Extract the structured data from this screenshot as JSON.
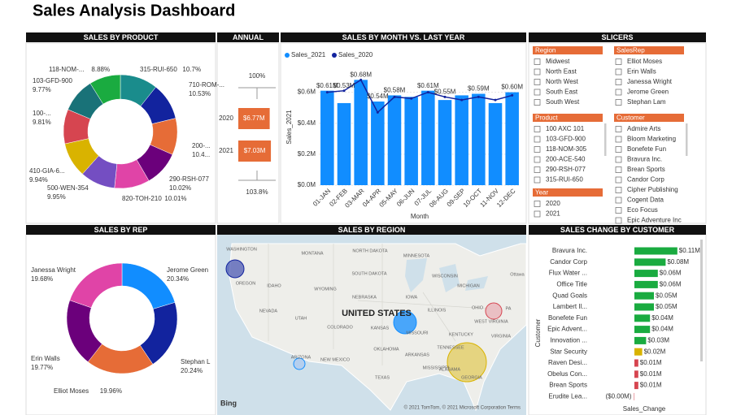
{
  "title": "Sales Analysis Dashboard",
  "chart_data": [
    {
      "type": "pie",
      "title": "SALES BY PRODUCT",
      "categories": [
        "315-RUI-650",
        "710-ROM-...",
        "200-...",
        "290-RSH-077",
        "820-TOH-210",
        "500-WEN-354",
        "410-GIA-6...",
        "100-...",
        "103-GFD-900",
        "118-NOM-..."
      ],
      "values": [
        10.7,
        10.53,
        10.4,
        10.02,
        10.01,
        9.95,
        9.94,
        9.81,
        9.77,
        8.88
      ],
      "value_labels": [
        "10.7%",
        "10.53%",
        "10.4...",
        "10.02%",
        "10.01%",
        "9.95%",
        "9.94%",
        "9.81%",
        "9.77%",
        "8.88%"
      ],
      "colors": [
        "#1a8c8c",
        "#12239e",
        "#e66c37",
        "#6b007b",
        "#e044a7",
        "#744ec2",
        "#d9b300",
        "#d64550",
        "#197278",
        "#1aab40"
      ]
    },
    {
      "type": "kpi",
      "title": "ANNUAL",
      "categories": [
        "2020",
        "2021"
      ],
      "values": [
        6.77,
        7.03
      ],
      "value_labels": [
        "$6.77M",
        "$7.03M"
      ],
      "annotations": [
        "100%",
        "103.8%"
      ],
      "color": "#e66c37"
    },
    {
      "type": "combo",
      "title": "SALES BY MONTH VS. LAST YEAR",
      "categories": [
        "01-JAN",
        "02-FEB",
        "03-MAR",
        "04-APR",
        "05-MAY",
        "06-JUN",
        "07-JUL",
        "08-AUG",
        "09-SEP",
        "10-OCT",
        "11-NOV",
        "12-DEC"
      ],
      "series": [
        {
          "name": "Sales_2021",
          "color": "#118dff",
          "values": [
            0.61,
            0.53,
            0.68,
            0.54,
            0.58,
            0.57,
            0.61,
            0.55,
            0.58,
            0.59,
            0.53,
            0.6
          ],
          "value_labels": [
            "$0.61M",
            "$0.53M",
            "$0.68M",
            "$0.54M",
            "$0.58M",
            null,
            "$0.61M",
            "$0.55M",
            null,
            "$0.59M",
            null,
            "$0.60M"
          ]
        },
        {
          "name": "Sales_2020",
          "color": "#12239e",
          "values": [
            0.6,
            0.61,
            0.68,
            0.47,
            0.57,
            0.56,
            0.6,
            0.57,
            0.55,
            0.57,
            0.55,
            0.58
          ]
        }
      ],
      "ylim": [
        0,
        0.75
      ],
      "yticks": [
        {
          "value": 0,
          "label": "$0.0M"
        },
        {
          "value": 0.2,
          "label": "$0.2M"
        },
        {
          "value": 0.4,
          "label": "$0.4M"
        },
        {
          "value": 0.6,
          "label": "$0.6M"
        }
      ],
      "ylabel": "Sales_2021",
      "xlabel": "Month",
      "grid": true
    },
    {
      "type": "pie",
      "title": "SALES BY REP",
      "categories": [
        "Jerome Green",
        "Stephan L",
        "Elliot Moses",
        "Erin Walls",
        "Janessa Wright"
      ],
      "values": [
        20.34,
        20.24,
        19.96,
        19.77,
        19.68
      ],
      "value_labels": [
        "20.34%",
        "20.24%",
        "19.96%",
        "19.77%",
        "19.68%"
      ],
      "colors": [
        "#118dff",
        "#12239e",
        "#e66c37",
        "#6b007b",
        "#e044a7"
      ]
    },
    {
      "type": "barh",
      "title": "SALES CHANGE BY CUSTOMER",
      "categories": [
        "Bravura Inc.",
        "Candor Corp",
        "Flux Water ...",
        "Office Title",
        "Quad Goals",
        "Lambert Il...",
        "Bonefete Fun",
        "Epic Advent...",
        "Innovation ...",
        "Star Security",
        "Raven Desi...",
        "Obelus Con...",
        "Brean Sports",
        "Erudite Lea..."
      ],
      "values": [
        0.11,
        0.08,
        0.06,
        0.06,
        0.05,
        0.05,
        0.04,
        0.04,
        0.03,
        0.02,
        0.01,
        0.01,
        0.01,
        -0.001
      ],
      "value_labels": [
        "$0.11M",
        "$0.08M",
        "$0.06M",
        "$0.06M",
        "$0.05M",
        "$0.05M",
        "$0.04M",
        "$0.04M",
        "$0.03M",
        "$0.02M",
        "$0.01M",
        "$0.01M",
        "$0.01M",
        "($0.00M)"
      ],
      "colors": [
        "#1aab40",
        "#1aab40",
        "#1aab40",
        "#1aab40",
        "#1aab40",
        "#1aab40",
        "#1aab40",
        "#1aab40",
        "#1aab40",
        "#d9b300",
        "#d64550",
        "#d64550",
        "#d64550",
        "#d64550"
      ],
      "xlim": [
        -0.01,
        0.12
      ],
      "xlabel": "Sales_Change",
      "ylabel": "Customer"
    }
  ],
  "slicers": {
    "title": "SLICERS",
    "groups": [
      {
        "name": "Region",
        "items": [
          "Midwest",
          "North East",
          "North West",
          "South East",
          "South West"
        ]
      },
      {
        "name": "SalesRep",
        "items": [
          "Elliot Moses",
          "Erin Walls",
          "Janessa Wright",
          "Jerome Green",
          "Stephan Lam"
        ]
      },
      {
        "name": "Product",
        "items": [
          "100 AXC 101",
          "103-GFD-900",
          "118-NOM-305",
          "200-ACE-540",
          "290-RSH-077",
          "315-RUI-650"
        ]
      },
      {
        "name": "Customer",
        "items": [
          "Admire Arts",
          "Bloom Marketing",
          "Bonefete Fun",
          "Bravura Inc.",
          "Brean Sports",
          "Candor Corp",
          "Cipher Publishing",
          "Cogent Data",
          "Eco Focus",
          "Epic Adventure Inc"
        ]
      },
      {
        "name": "Year",
        "items": [
          "2020",
          "2021"
        ]
      }
    ]
  },
  "map": {
    "title": "SALES BY REGION",
    "country": "UNITED STATES",
    "labels": [
      "WASHINGTON",
      "MONTANA",
      "NORTH DAKOTA",
      "MINNESOTA",
      "OREGON",
      "IDAHO",
      "SOUTH DAKOTA",
      "WYOMING",
      "WISCONSIN",
      "MICHIGAN",
      "IOWA",
      "NEBRASKA",
      "NEVADA",
      "UTAH",
      "COLORADO",
      "KANSAS",
      "ILLINOIS",
      "OHIO",
      "MISSOURI",
      "KENTUCKY",
      "VIRGINIA",
      "WEST VIRGINIA",
      "ARIZONA",
      "NEW MEXICO",
      "OKLAHOMA",
      "ARKANSAS",
      "TENNESSEE",
      "TEXAS",
      "MISSISSIPPI",
      "ALABAMA",
      "GEORGIA",
      "Ottawa",
      "PA"
    ],
    "brand": "Bing",
    "credit": "© 2021 TomTom, © 2021 Microsoft Corporation Terms"
  }
}
